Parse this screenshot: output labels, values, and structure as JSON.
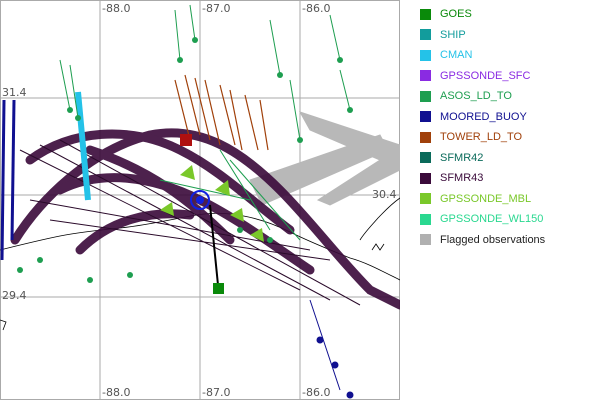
{
  "map": {
    "lon_labels_top": [
      "-88.0",
      "-87.0",
      "-86.0"
    ],
    "lon_labels_bottom": [
      "-88.0",
      "-87.0",
      "-86.0"
    ],
    "lat_labels_left": [
      "31.4",
      "29.4"
    ],
    "lat_labels_right": [
      "30.4"
    ]
  },
  "legend": [
    {
      "label": "GOES",
      "color": "#0a8a0a"
    },
    {
      "label": "SHIP",
      "color": "#129c9c"
    },
    {
      "label": "CMAN",
      "color": "#24c2e8"
    },
    {
      "label": "GPSSONDE_SFC",
      "color": "#8a2be2"
    },
    {
      "label": "ASOS_LD_TO",
      "color": "#1e9e50"
    },
    {
      "label": "MOORED_BUOY",
      "color": "#101090"
    },
    {
      "label": "TOWER_LD_TO",
      "color": "#a0400a"
    },
    {
      "label": "SFMR42",
      "color": "#0a6a5a"
    },
    {
      "label": "SFMR43",
      "color": "#3a0a3a"
    },
    {
      "label": "GPSSONDE_MBL",
      "color": "#7ac82a"
    },
    {
      "label": "GPSSONDE_WL150",
      "color": "#2ad890"
    },
    {
      "label": "Flagged observations",
      "color": "#b0b0b0"
    }
  ],
  "colors": {
    "grid": "#aaaaaa",
    "coast": "#000000"
  }
}
